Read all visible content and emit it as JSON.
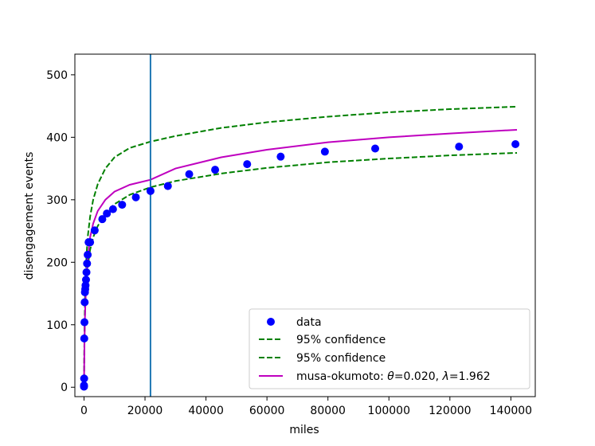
{
  "chart_data": {
    "type": "scatter",
    "xlabel": "miles",
    "ylabel": "disengagement events",
    "xlim": [
      -3000,
      148000
    ],
    "ylim": [
      -15,
      533
    ],
    "xticks": [
      0,
      20000,
      40000,
      60000,
      80000,
      100000,
      120000,
      140000
    ],
    "yticks": [
      0,
      100,
      200,
      300,
      400,
      500
    ],
    "grid": false,
    "legend_position": "lower right",
    "vertical_line": {
      "x": 21800,
      "color": "#1f77b4"
    },
    "series": [
      {
        "name": "data",
        "kind": "scatter",
        "color": "#0000ff",
        "x": [
          0,
          0,
          40,
          80,
          150,
          220,
          300,
          400,
          500,
          650,
          800,
          1000,
          1200,
          1500,
          2000,
          3500,
          6000,
          7500,
          9500,
          12500,
          17000,
          21800,
          27500,
          34500,
          43000,
          53500,
          64500,
          79000,
          95500,
          123000,
          141500
        ],
        "y": [
          1,
          3,
          14,
          78,
          104,
          136,
          152,
          157,
          163,
          172,
          184,
          198,
          212,
          232,
          232,
          251,
          269,
          278,
          285,
          292,
          304,
          314,
          322,
          341,
          348,
          357,
          369,
          377,
          382,
          385,
          389
        ]
      },
      {
        "name": "95% confidence",
        "kind": "line",
        "style": "dashed",
        "color": "#008000",
        "x": [
          0,
          50,
          150,
          300,
          500,
          800,
          1200,
          2000,
          3000,
          4500,
          7000,
          10000,
          15000,
          21800,
          30000,
          45000,
          60000,
          80000,
          100000,
          120000,
          142000
        ],
        "y": [
          0,
          30,
          76,
          113,
          143,
          170,
          192,
          220,
          240,
          258,
          278,
          293,
          308,
          320,
          330,
          342,
          351,
          360,
          366,
          371,
          375
        ]
      },
      {
        "name": "95% confidence",
        "kind": "line",
        "style": "dashed",
        "color": "#008000",
        "x": [
          0,
          50,
          150,
          300,
          500,
          800,
          1200,
          2000,
          3000,
          4500,
          7000,
          10000,
          15000,
          21800,
          30000,
          45000,
          60000,
          80000,
          100000,
          120000,
          142000
        ],
        "y": [
          0,
          35,
          90,
          137,
          175,
          210,
          240,
          273,
          300,
          325,
          350,
          368,
          383,
          393,
          402,
          415,
          424,
          433,
          440,
          445,
          449
        ]
      },
      {
        "name": "musa-okumoto: θ=0.020, λ=1.962",
        "kind": "line",
        "style": "solid",
        "color": "#bf00bf",
        "x": [
          0,
          50,
          150,
          300,
          500,
          800,
          1200,
          2000,
          3000,
          4500,
          7000,
          10000,
          15000,
          21800,
          30000,
          45000,
          60000,
          80000,
          100000,
          120000,
          142000
        ],
        "y": [
          0,
          28,
          72,
          110,
          143,
          175,
          205,
          240,
          262,
          282,
          300,
          313,
          324,
          332,
          350,
          368,
          380,
          392,
          400,
          406,
          412
        ]
      }
    ]
  },
  "legend": {
    "entries": [
      {
        "label": "data"
      },
      {
        "label": "95% confidence"
      },
      {
        "label": "95% confidence"
      },
      {
        "prefix": "musa-okumoto: ",
        "theta_symbol": "θ",
        "theta_value": "=0.020, ",
        "lambda_symbol": "λ",
        "lambda_value": "=1.962"
      }
    ]
  }
}
